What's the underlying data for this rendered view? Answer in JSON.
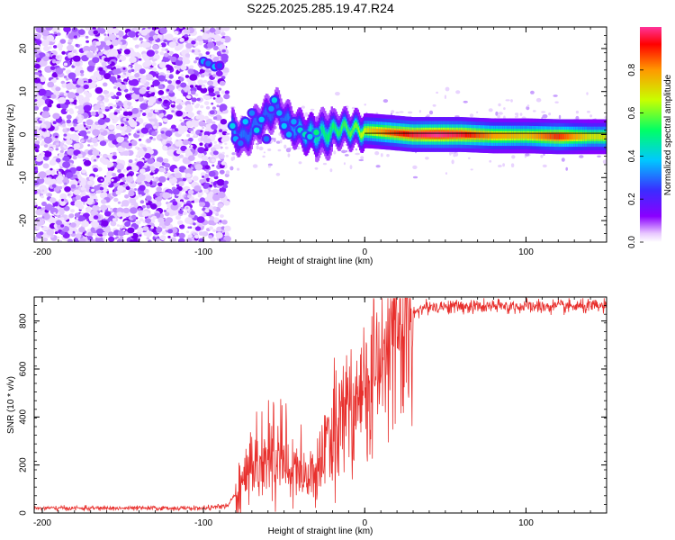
{
  "title": "S225.2025.285.19.47.R24",
  "colors": {
    "snr_line": "#e8302d",
    "colormap": [
      "#ffffff",
      "#8a00ff",
      "#3b2cff",
      "#00c8ff",
      "#00ff66",
      "#c8ff00",
      "#ff9900",
      "#ff0000",
      "#ff3399"
    ]
  },
  "chart_data": [
    {
      "type": "heatmap",
      "xlabel": "Height of straight line (km)",
      "ylabel": "Frequency (Hz)",
      "xlim": [
        -205,
        150
      ],
      "ylim": [
        -25,
        25
      ],
      "x_ticks": [
        -200,
        -100,
        0,
        100
      ],
      "y_ticks": [
        -20,
        -10,
        0,
        10,
        20
      ],
      "colorbar": {
        "label": "Normalized spectral amplitude",
        "range": [
          0,
          1
        ],
        "ticks": [
          "0.0",
          "0.2",
          "0.4",
          "0.6",
          "0.8"
        ]
      },
      "noise_region_x": [
        -205,
        -85
      ],
      "peak_ridge": [
        {
          "x": -100,
          "y": 17,
          "v": 0.3
        },
        {
          "x": -93,
          "y": 16,
          "v": 0.25
        },
        {
          "x": -82,
          "y": 1,
          "v": 0.35
        },
        {
          "x": -75,
          "y": -1,
          "v": 0.3
        },
        {
          "x": -65,
          "y": 3,
          "v": 0.3
        },
        {
          "x": -55,
          "y": 6,
          "v": 0.28
        },
        {
          "x": -45,
          "y": 2,
          "v": 0.32
        },
        {
          "x": -35,
          "y": 0,
          "v": 0.4
        },
        {
          "x": -25,
          "y": 0,
          "v": 0.5
        },
        {
          "x": -15,
          "y": 1.5,
          "v": 0.55
        },
        {
          "x": -5,
          "y": 1,
          "v": 0.6
        },
        {
          "x": 5,
          "y": 0.8,
          "v": 0.75
        },
        {
          "x": 15,
          "y": 0.5,
          "v": 0.85
        },
        {
          "x": 30,
          "y": 0,
          "v": 0.95
        },
        {
          "x": 45,
          "y": 0,
          "v": 1.0
        },
        {
          "x": 60,
          "y": 0,
          "v": 0.95
        },
        {
          "x": 80,
          "y": -0.3,
          "v": 0.8
        },
        {
          "x": 100,
          "y": -0.3,
          "v": 0.75
        },
        {
          "x": 120,
          "y": -0.5,
          "v": 0.9
        },
        {
          "x": 140,
          "y": -0.5,
          "v": 0.7
        }
      ]
    },
    {
      "type": "line",
      "xlabel": "Height of straight line (km)",
      "ylabel": "SNR (10 * v/v)",
      "xlim": [
        -205,
        150
      ],
      "ylim": [
        0,
        900
      ],
      "x_ticks": [
        -200,
        -100,
        0,
        100
      ],
      "y_ticks": [
        0,
        200,
        400,
        600,
        800
      ],
      "series": [
        {
          "x": [
            -205,
            -150,
            -100,
            -85,
            -78,
            -70,
            -60,
            -50,
            -40,
            -30,
            -25,
            -20,
            -15,
            -10,
            -5,
            0,
            5,
            10,
            15,
            20,
            25,
            30,
            40,
            50,
            75,
            100,
            125,
            150
          ],
          "values": [
            20,
            20,
            20,
            30,
            100,
            200,
            230,
            200,
            150,
            170,
            250,
            300,
            400,
            450,
            470,
            500,
            560,
            600,
            680,
            760,
            800,
            840,
            860,
            860,
            860,
            860,
            860,
            860
          ]
        }
      ]
    }
  ]
}
